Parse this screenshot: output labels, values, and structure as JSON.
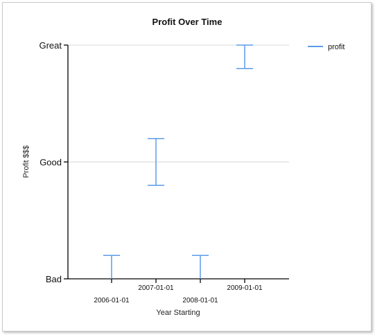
{
  "chart_data": {
    "type": "errorbar",
    "title": "Profit Over Time",
    "xlabel": "Year Starting",
    "ylabel": "Profit $$$",
    "y_categories": [
      "Bad",
      "Good",
      "Great"
    ],
    "ylim": [
      0,
      2
    ],
    "categories": [
      "2006-01-01",
      "2007-01-01",
      "2008-01-01",
      "2009-01-01"
    ],
    "series": [
      {
        "name": "profit",
        "color": "#5b9bea",
        "ranges": [
          [
            0,
            0.2
          ],
          [
            0.8,
            1.2
          ],
          [
            0,
            0.2
          ],
          [
            1.8,
            2
          ]
        ]
      }
    ],
    "grid": true,
    "legend": "top-right"
  }
}
